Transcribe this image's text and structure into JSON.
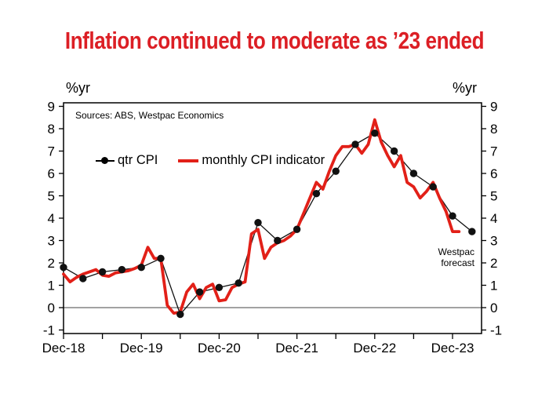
{
  "title": "Inflation continued to moderate as ’23 ended",
  "colors": {
    "title_red": "#dc1f25",
    "line_red": "#e22018",
    "line_black": "#111111"
  },
  "chart": {
    "y_axis_label_left": "%yr",
    "y_axis_label_right": "%yr",
    "sources_note": "Sources: ABS, Westpac Economics",
    "legend": {
      "qtr_label": "qtr CPI",
      "monthly_label": "monthly CPI indicator"
    },
    "forecast_note_line1": "Westpac",
    "forecast_note_line2": "forecast"
  },
  "chart_data": {
    "type": "line",
    "title": "Inflation continued to moderate as ’23 ended",
    "ylabel": "%yr",
    "ylim": [
      -1,
      9
    ],
    "y_ticks": [
      -1,
      0,
      1,
      2,
      3,
      4,
      5,
      6,
      7,
      8,
      9
    ],
    "x_tick_months": [
      0,
      6,
      12,
      18,
      24,
      30,
      36,
      42,
      48,
      54,
      60
    ],
    "x_label_months": [
      0,
      12,
      24,
      36,
      48,
      60
    ],
    "x_tick_labels": [
      "Dec-18",
      "Dec-19",
      "Dec-20",
      "Dec-21",
      "Dec-22",
      "Dec-23"
    ],
    "zero_gridline": true,
    "legend_position": "top-inside",
    "annotation": "Westpac forecast",
    "series": [
      {
        "name": "qtr CPI",
        "color": "#111111",
        "marker": "circle",
        "line_width": 1.3,
        "x_months_from_dec18": [
          0,
          3,
          6,
          9,
          12,
          15,
          18,
          21,
          24,
          27,
          30,
          33,
          36,
          39,
          42,
          45,
          48,
          51,
          54,
          57,
          60,
          63
        ],
        "quarters": [
          "Dec-18",
          "Mar-19",
          "Jun-19",
          "Sep-19",
          "Dec-19",
          "Mar-20",
          "Jun-20",
          "Sep-20",
          "Dec-20",
          "Mar-21",
          "Jun-21",
          "Sep-21",
          "Dec-21",
          "Mar-22",
          "Jun-22",
          "Sep-22",
          "Dec-22",
          "Mar-23",
          "Jun-23",
          "Sep-23",
          "Dec-23",
          "Mar-24"
        ],
        "values": [
          1.8,
          1.3,
          1.6,
          1.7,
          1.8,
          2.2,
          -0.3,
          0.7,
          0.9,
          1.1,
          3.8,
          3.0,
          3.5,
          5.1,
          6.1,
          7.3,
          7.8,
          7.0,
          6.0,
          5.4,
          4.1,
          3.4
        ],
        "forecast_last_n_points": 1
      },
      {
        "name": "monthly CPI indicator",
        "color": "#e22018",
        "marker": "none",
        "line_width": 3.8,
        "x_months_from_dec18": [
          0,
          1,
          2,
          3,
          4,
          5,
          6,
          7,
          8,
          9,
          10,
          11,
          12,
          13,
          14,
          15,
          16,
          17,
          18,
          19,
          20,
          21,
          22,
          23,
          24,
          25,
          26,
          27,
          28,
          29,
          30,
          31,
          32,
          33,
          34,
          35,
          36,
          37,
          38,
          39,
          40,
          41,
          42,
          43,
          44,
          45,
          46,
          47,
          48,
          49,
          50,
          51,
          52,
          53,
          54,
          55,
          56,
          57,
          58,
          59,
          60,
          61
        ],
        "values": [
          1.5,
          1.15,
          1.35,
          1.5,
          1.6,
          1.7,
          1.45,
          1.4,
          1.55,
          1.6,
          1.65,
          1.75,
          1.9,
          2.7,
          2.2,
          2.2,
          0.1,
          -0.25,
          -0.2,
          0.7,
          1.05,
          0.4,
          0.9,
          1.05,
          0.3,
          0.35,
          0.9,
          1.05,
          1.15,
          3.3,
          3.5,
          2.2,
          2.7,
          2.9,
          3.0,
          3.2,
          3.5,
          4.2,
          4.9,
          5.6,
          5.3,
          6.1,
          6.8,
          7.2,
          7.2,
          7.3,
          6.9,
          7.3,
          8.4,
          7.4,
          6.8,
          6.3,
          6.8,
          5.6,
          5.4,
          4.9,
          5.2,
          5.6,
          4.9,
          4.3,
          3.4,
          3.4
        ],
        "forecast_last_n_points": 1
      }
    ]
  }
}
